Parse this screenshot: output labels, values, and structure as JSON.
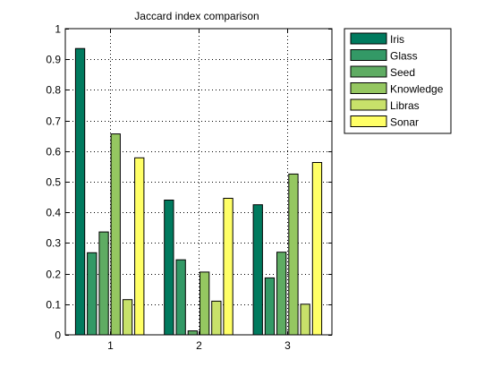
{
  "chart_data": {
    "type": "bar",
    "title": "Jaccard index comparison",
    "xlabel": "",
    "ylabel": "",
    "categories": [
      "1",
      "2",
      "3"
    ],
    "ylim": [
      0,
      1
    ],
    "yticks": [
      "0",
      "0.1",
      "0.2",
      "0.3",
      "0.4",
      "0.5",
      "0.6",
      "0.7",
      "0.8",
      "0.9",
      "1"
    ],
    "grid": true,
    "legend_position": "outside-top-right",
    "series": [
      {
        "name": "Iris",
        "color": "#007a5e",
        "values": [
          0.935,
          0.44,
          0.425
        ]
      },
      {
        "name": "Glass",
        "color": "#339966",
        "values": [
          0.268,
          0.245,
          0.186
        ]
      },
      {
        "name": "Seed",
        "color": "#5fac63",
        "values": [
          0.336,
          0.013,
          0.27
        ]
      },
      {
        "name": "Knowledge",
        "color": "#95c761",
        "values": [
          0.656,
          0.205,
          0.525
        ]
      },
      {
        "name": "Libras",
        "color": "#c8e16a",
        "values": [
          0.115,
          0.11,
          0.1
        ]
      },
      {
        "name": "Sonar",
        "color": "#ffff66",
        "values": [
          0.578,
          0.446,
          0.563
        ]
      }
    ]
  }
}
